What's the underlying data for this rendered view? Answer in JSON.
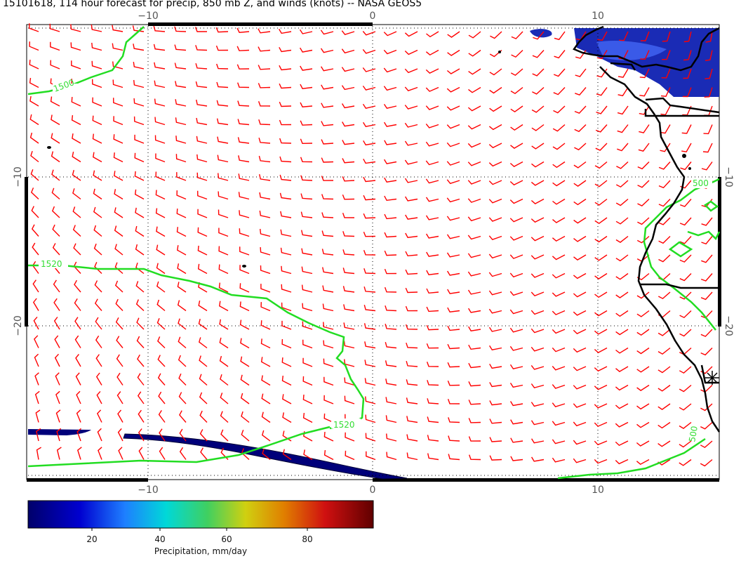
{
  "title": "15101618, 114 hour forecast for precip, 850 mb Z, and winds (knots) -- NASA GEOS5",
  "map": {
    "lon_range": [
      -15.5,
      15.5
    ],
    "lat_range": [
      -30,
      0
    ],
    "x_ticks": [
      {
        "value": -10,
        "label": "−10"
      },
      {
        "value": 0,
        "label": "0"
      },
      {
        "value": 10,
        "label": "10"
      }
    ],
    "y_ticks": [
      {
        "value": -10,
        "label": "−10"
      },
      {
        "value": -20,
        "label": "−20"
      }
    ],
    "gridlines": true,
    "contour_labels": [
      "1500",
      "1520",
      "1520",
      "500",
      "500"
    ],
    "colors": {
      "wind_barbs": "#ff0000",
      "contours": "#22dd22",
      "coastline": "#000000",
      "precip": "#00007a"
    }
  },
  "colorbar": {
    "ticks": [
      "20",
      "40",
      "60",
      "80"
    ],
    "label": "Precipitation, mm/day",
    "range": [
      0,
      100
    ]
  }
}
